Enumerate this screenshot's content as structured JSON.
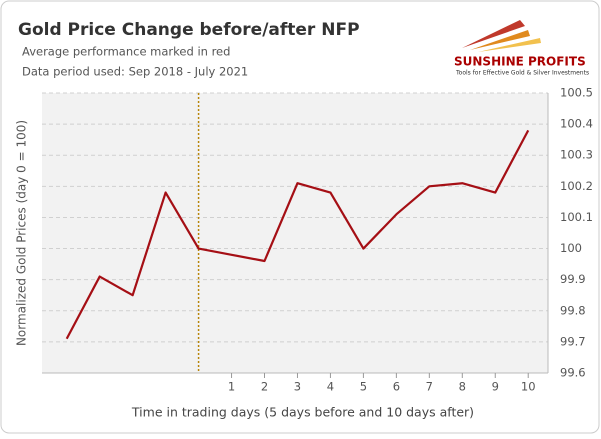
{
  "chart_data": {
    "type": "line",
    "title": "Gold Price Change before/after NFP",
    "subtitle": [
      "Average performance marked in red",
      "Data period used: Sep 2018 - July 2021"
    ],
    "logo": {
      "name": "SUNSHINE PROFITS",
      "tagline": "Tools for Effective Gold & Silver Investments"
    },
    "x_label": "Time in trading days  (5 days before and 10 days after)",
    "y_label": "Normalized Gold Prices (day 0 = 100)",
    "x": [
      -4,
      -3,
      -2,
      -1,
      0,
      1,
      2,
      3,
      4,
      5,
      6,
      7,
      8,
      9,
      10
    ],
    "series": [
      {
        "name": "Average performance",
        "color": "#a50f15",
        "values": [
          99.71,
          99.91,
          99.85,
          100.18,
          100,
          99.98,
          99.96,
          100.21,
          100.18,
          100,
          100.11,
          100.2,
          100.21,
          100.18,
          100.38
        ]
      }
    ],
    "xlim": [
      -4.75,
      10.6
    ],
    "xticks": [
      1,
      2,
      3,
      4,
      5,
      6,
      7,
      8,
      9,
      10
    ],
    "ylim": [
      99.6,
      100.5
    ],
    "yticks": [
      99.6,
      99.7,
      99.8,
      99.9,
      100,
      100.1,
      100.2,
      100.3,
      100.4,
      100.5
    ],
    "y_axis_side": "right",
    "grid": true,
    "vline_x": 0,
    "vline_color": "#b8860b"
  }
}
